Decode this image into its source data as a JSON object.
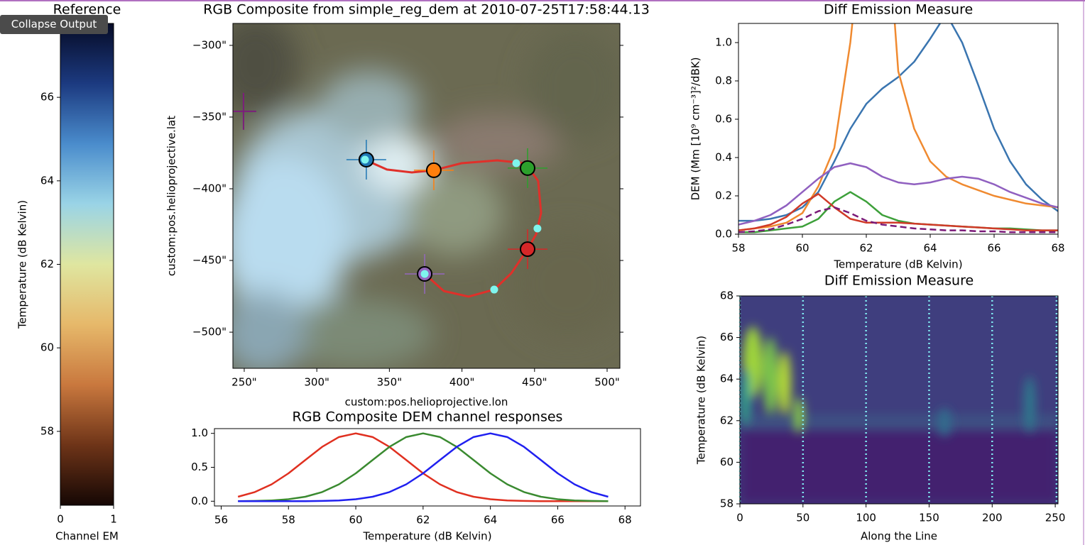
{
  "collapse_button": "Collapse Output",
  "chart_data": [
    {
      "type": "colorbar",
      "title": "Reference",
      "ylabel": "Temperature (dB Kelvin)",
      "xlabel": "Channel EM",
      "xlim": [
        0,
        1
      ],
      "xticks": [
        0,
        1
      ],
      "ylim": [
        56.23,
        67.77
      ],
      "yticks": [
        58,
        60,
        62,
        64,
        66
      ],
      "colormap": [
        "#150704",
        "#6e3418",
        "#c9783e",
        "#e6b86a",
        "#dfe6a0",
        "#9ad4e6",
        "#4a8ccc",
        "#1c3a80",
        "#060b26"
      ]
    },
    {
      "type": "image",
      "title": "RGB Composite from simple_reg_dem at 2010-07-25T17:58:44.13",
      "xlabel": "custom:pos.helioprojective.lon",
      "ylabel": "custom:pos.helioprojective.lat",
      "xlim": [
        242.2,
        508.8
      ],
      "ylim": [
        -525.2,
        -284.7
      ],
      "xticks": [
        {
          "value": 250,
          "label": "250\""
        },
        {
          "value": 300,
          "label": "300\""
        },
        {
          "value": 350,
          "label": "350\""
        },
        {
          "value": 400,
          "label": "400\""
        },
        {
          "value": 450,
          "label": "450\""
        },
        {
          "value": 500,
          "label": "500\""
        }
      ],
      "yticks": [
        {
          "value": -300,
          "label": "−300\""
        },
        {
          "value": -350,
          "label": "−350\""
        },
        {
          "value": -400,
          "label": "−400\""
        },
        {
          "value": -450,
          "label": "−450\""
        },
        {
          "value": -500,
          "label": "−500\""
        }
      ],
      "path": {
        "color": "#e0302a",
        "x": [
          334.1,
          348.3,
          365.5,
          380.6,
          399.7,
          424.2,
          443.7,
          452.5,
          454.5,
          451.1,
          445.2,
          434.0,
          422.2,
          404.6,
          387.5,
          374.3
        ],
        "y": [
          -380.2,
          -386.6,
          -388.6,
          -387.1,
          -382.2,
          -380.2,
          -382.2,
          -394.6,
          -416.8,
          -431.7,
          -442.1,
          -458.9,
          -470.3,
          -475.2,
          -471.3,
          -459.4
        ]
      },
      "markers": {
        "x": [
          334.1,
          380.6,
          445.2,
          445.2,
          374.3
        ],
        "y": [
          -379.7,
          -387.1,
          -385.6,
          -442.1,
          -459.4
        ],
        "colors": [
          "#1f77b4",
          "#ff7f0e",
          "#2ca02c",
          "#d62728",
          "#9467bd"
        ]
      },
      "points": {
        "color": "#7ff5ee",
        "x": [
          333.2,
          437.4,
          452.0,
          422.2,
          374.3
        ],
        "y": [
          -379.7,
          -382.2,
          -427.7,
          -470.3,
          -459.4
        ]
      },
      "reference_cross": {
        "x": 249.5,
        "y": -346,
        "color": "#7b1f7b"
      }
    },
    {
      "type": "line",
      "title": "RGB Composite DEM channel responses",
      "xlabel": "Temperature (dB Kelvin)",
      "xlim": [
        55.8,
        68.46
      ],
      "xticks": [
        56,
        58,
        60,
        62,
        64,
        66,
        68
      ],
      "ylim": [
        -0.07,
        1.07
      ],
      "yticks": [
        {
          "value": 0,
          "label": "0.0"
        },
        0.5,
        {
          "value": 1,
          "label": "1.0"
        }
      ],
      "x": [
        56.5,
        57,
        57.5,
        58,
        58.5,
        59,
        59.5,
        60,
        60.5,
        61,
        61.5,
        62,
        62.5,
        63,
        63.5,
        64,
        64.5,
        65,
        65.5,
        66,
        66.5,
        67,
        67.5
      ],
      "series": [
        {
          "color": "#e03020",
          "values": [
            0.066,
            0.135,
            0.249,
            0.411,
            0.607,
            0.801,
            0.946,
            1,
            0.946,
            0.801,
            0.607,
            0.411,
            0.249,
            0.135,
            0.066,
            0.029,
            0.011,
            0.004,
            0.001,
            0,
            0,
            0,
            0
          ]
        },
        {
          "color": "#3a8a30",
          "values": [
            0.001,
            0.004,
            0.011,
            0.029,
            0.066,
            0.135,
            0.249,
            0.411,
            0.607,
            0.801,
            0.946,
            1,
            0.946,
            0.801,
            0.607,
            0.411,
            0.249,
            0.135,
            0.066,
            0.029,
            0.011,
            0.004,
            0.001
          ]
        },
        {
          "color": "#2020f0",
          "values": [
            0,
            0,
            0,
            0,
            0.001,
            0.004,
            0.011,
            0.029,
            0.066,
            0.135,
            0.249,
            0.411,
            0.607,
            0.801,
            0.946,
            1,
            0.946,
            0.801,
            0.607,
            0.411,
            0.249,
            0.135,
            0.066
          ]
        }
      ]
    },
    {
      "type": "line",
      "title": "Diff Emission Measure",
      "xlabel": "Temperature (dB Kelvin)",
      "ylabel": "DEM (Mm [10⁹ cm⁻³]²/dBK)",
      "xlim": [
        58,
        68
      ],
      "xticks": [
        58,
        60,
        62,
        64,
        66,
        68
      ],
      "ylim": [
        0,
        1.1
      ],
      "yticks": [
        {
          "value": 0,
          "label": "0.0"
        },
        0.2,
        0.4,
        0.6,
        0.8,
        {
          "value": 1,
          "label": "1.0"
        }
      ],
      "x": [
        58,
        58.5,
        59,
        59.5,
        60,
        60.5,
        61,
        61.5,
        62,
        62.5,
        63,
        63.5,
        64,
        64.5,
        65,
        65.5,
        66,
        66.5,
        67,
        67.5,
        68
      ],
      "series": [
        {
          "color": "#3a75b0",
          "values": [
            0.07,
            0.07,
            0.08,
            0.1,
            0.14,
            0.22,
            0.38,
            0.55,
            0.68,
            0.76,
            0.82,
            0.9,
            1.02,
            1.15,
            1.0,
            0.78,
            0.55,
            0.38,
            0.26,
            0.18,
            0.12
          ]
        },
        {
          "color": "#f08a30",
          "values": [
            0.02,
            0.03,
            0.04,
            0.06,
            0.11,
            0.25,
            0.45,
            1.0,
            1.8,
            2.0,
            0.85,
            0.55,
            0.38,
            0.3,
            0.26,
            0.23,
            0.2,
            0.18,
            0.16,
            0.15,
            0.14
          ]
        },
        {
          "color": "#3da03a",
          "values": [
            0.01,
            0.01,
            0.02,
            0.03,
            0.04,
            0.08,
            0.17,
            0.22,
            0.17,
            0.1,
            0.07,
            0.055,
            0.05,
            0.045,
            0.04,
            0.035,
            0.03,
            0.03,
            0.025,
            0.02,
            0.02
          ]
        },
        {
          "color": "#d03a28",
          "values": [
            0.02,
            0.03,
            0.05,
            0.09,
            0.16,
            0.21,
            0.14,
            0.08,
            0.06,
            0.06,
            0.06,
            0.055,
            0.05,
            0.045,
            0.04,
            0.035,
            0.03,
            0.025,
            0.02,
            0.02,
            0.02
          ]
        },
        {
          "color": "#9060c0",
          "values": [
            0.05,
            0.07,
            0.1,
            0.15,
            0.22,
            0.29,
            0.35,
            0.37,
            0.35,
            0.3,
            0.27,
            0.26,
            0.27,
            0.29,
            0.3,
            0.29,
            0.26,
            0.22,
            0.19,
            0.16,
            0.14
          ]
        },
        {
          "color": "#7a1a78",
          "dashed": true,
          "values": [
            0.01,
            0.015,
            0.025,
            0.05,
            0.08,
            0.12,
            0.14,
            0.11,
            0.07,
            0.05,
            0.04,
            0.03,
            0.025,
            0.02,
            0.02,
            0.015,
            0.015,
            0.01,
            0.01,
            0.01,
            0.01
          ]
        }
      ]
    },
    {
      "type": "heatmap",
      "title": "Diff Emission Measure",
      "xlabel": "Along the Line",
      "ylabel": "Temperature (dB Kelvin)",
      "xlim": [
        0,
        252.2
      ],
      "xticks": [
        0,
        50,
        100,
        150,
        200,
        250
      ],
      "ylim": [
        58,
        68
      ],
      "yticks": [
        58,
        60,
        62,
        64,
        66,
        68
      ],
      "vlines": [
        0,
        50,
        100,
        150,
        200,
        251
      ],
      "vline_color": "#7fe8f0"
    }
  ]
}
